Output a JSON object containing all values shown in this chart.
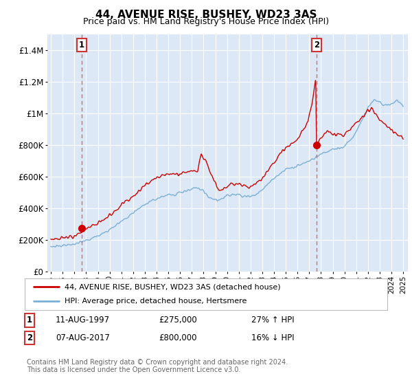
{
  "title": "44, AVENUE RISE, BUSHEY, WD23 3AS",
  "subtitle": "Price paid vs. HM Land Registry's House Price Index (HPI)",
  "legend_line1": "44, AVENUE RISE, BUSHEY, WD23 3AS (detached house)",
  "legend_line2": "HPI: Average price, detached house, Hertsmere",
  "transaction1_date": "11-AUG-1997",
  "transaction1_price": 275000,
  "transaction1_label": "27% ↑ HPI",
  "transaction1_year": 1997.62,
  "transaction2_date": "07-AUG-2017",
  "transaction2_price": 800000,
  "transaction2_label": "16% ↓ HPI",
  "transaction2_year": 2017.62,
  "footer1": "Contains HM Land Registry data © Crown copyright and database right 2024.",
  "footer2": "This data is licensed under the Open Government Licence v3.0.",
  "line_color_red": "#cc0000",
  "line_color_blue": "#7bafd4",
  "bg_color": "#dce8f5",
  "grid_color": "#ffffff",
  "ylim_max": 1500000,
  "xlim_start": 1994.7,
  "xlim_end": 2025.4,
  "hpi_points": [
    [
      1995.0,
      155000
    ],
    [
      1995.5,
      158000
    ],
    [
      1996.0,
      162000
    ],
    [
      1996.5,
      168000
    ],
    [
      1997.0,
      175000
    ],
    [
      1997.5,
      183000
    ],
    [
      1998.0,
      195000
    ],
    [
      1998.5,
      210000
    ],
    [
      1999.0,
      225000
    ],
    [
      1999.5,
      245000
    ],
    [
      2000.0,
      265000
    ],
    [
      2000.5,
      290000
    ],
    [
      2001.0,
      315000
    ],
    [
      2001.5,
      340000
    ],
    [
      2002.0,
      370000
    ],
    [
      2002.5,
      400000
    ],
    [
      2003.0,
      425000
    ],
    [
      2003.5,
      445000
    ],
    [
      2004.0,
      460000
    ],
    [
      2004.5,
      475000
    ],
    [
      2005.0,
      485000
    ],
    [
      2005.5,
      490000
    ],
    [
      2006.0,
      500000
    ],
    [
      2006.5,
      510000
    ],
    [
      2007.0,
      520000
    ],
    [
      2007.5,
      525000
    ],
    [
      2008.0,
      510000
    ],
    [
      2008.5,
      470000
    ],
    [
      2009.0,
      450000
    ],
    [
      2009.5,
      460000
    ],
    [
      2010.0,
      480000
    ],
    [
      2010.5,
      490000
    ],
    [
      2011.0,
      488000
    ],
    [
      2011.5,
      480000
    ],
    [
      2012.0,
      475000
    ],
    [
      2012.5,
      490000
    ],
    [
      2013.0,
      520000
    ],
    [
      2013.5,
      555000
    ],
    [
      2014.0,
      590000
    ],
    [
      2014.5,
      620000
    ],
    [
      2015.0,
      645000
    ],
    [
      2015.5,
      660000
    ],
    [
      2016.0,
      670000
    ],
    [
      2016.5,
      680000
    ],
    [
      2017.0,
      700000
    ],
    [
      2017.5,
      720000
    ],
    [
      2018.0,
      740000
    ],
    [
      2018.5,
      760000
    ],
    [
      2019.0,
      770000
    ],
    [
      2019.5,
      780000
    ],
    [
      2020.0,
      790000
    ],
    [
      2020.5,
      830000
    ],
    [
      2021.0,
      890000
    ],
    [
      2021.5,
      960000
    ],
    [
      2022.0,
      1040000
    ],
    [
      2022.5,
      1090000
    ],
    [
      2023.0,
      1070000
    ],
    [
      2023.5,
      1050000
    ],
    [
      2024.0,
      1060000
    ],
    [
      2024.5,
      1080000
    ],
    [
      2025.0,
      1050000
    ]
  ],
  "red_points": [
    [
      1995.0,
      205000
    ],
    [
      1995.5,
      207000
    ],
    [
      1996.0,
      210000
    ],
    [
      1996.5,
      218000
    ],
    [
      1997.0,
      228000
    ],
    [
      1997.5,
      242000
    ],
    [
      1998.0,
      265000
    ],
    [
      1998.5,
      285000
    ],
    [
      1999.0,
      308000
    ],
    [
      1999.5,
      330000
    ],
    [
      2000.0,
      355000
    ],
    [
      2000.5,
      385000
    ],
    [
      2001.0,
      415000
    ],
    [
      2001.5,
      445000
    ],
    [
      2002.0,
      475000
    ],
    [
      2002.5,
      510000
    ],
    [
      2003.0,
      545000
    ],
    [
      2003.5,
      575000
    ],
    [
      2004.0,
      595000
    ],
    [
      2004.5,
      610000
    ],
    [
      2005.0,
      615000
    ],
    [
      2005.5,
      618000
    ],
    [
      2006.0,
      620000
    ],
    [
      2006.5,
      625000
    ],
    [
      2007.0,
      635000
    ],
    [
      2007.5,
      640000
    ],
    [
      2007.8,
      745000
    ],
    [
      2008.0,
      720000
    ],
    [
      2008.3,
      680000
    ],
    [
      2008.7,
      610000
    ],
    [
      2009.0,
      560000
    ],
    [
      2009.3,
      520000
    ],
    [
      2009.5,
      510000
    ],
    [
      2009.7,
      525000
    ],
    [
      2010.0,
      540000
    ],
    [
      2010.3,
      555000
    ],
    [
      2010.7,
      560000
    ],
    [
      2011.0,
      555000
    ],
    [
      2011.5,
      545000
    ],
    [
      2012.0,
      535000
    ],
    [
      2012.5,
      555000
    ],
    [
      2013.0,
      590000
    ],
    [
      2013.5,
      640000
    ],
    [
      2014.0,
      690000
    ],
    [
      2014.5,
      740000
    ],
    [
      2015.0,
      780000
    ],
    [
      2015.5,
      810000
    ],
    [
      2016.0,
      840000
    ],
    [
      2016.3,
      870000
    ],
    [
      2016.6,
      910000
    ],
    [
      2016.9,
      960000
    ],
    [
      2017.0,
      1000000
    ],
    [
      2017.2,
      1050000
    ],
    [
      2017.4,
      1150000
    ],
    [
      2017.5,
      1200000
    ],
    [
      2017.55,
      1220000
    ],
    [
      2017.62,
      800000
    ],
    [
      2017.8,
      820000
    ],
    [
      2018.0,
      840000
    ],
    [
      2018.3,
      870000
    ],
    [
      2018.6,
      880000
    ],
    [
      2019.0,
      870000
    ],
    [
      2019.5,
      865000
    ],
    [
      2020.0,
      870000
    ],
    [
      2020.5,
      900000
    ],
    [
      2021.0,
      940000
    ],
    [
      2021.5,
      980000
    ],
    [
      2022.0,
      1020000
    ],
    [
      2022.3,
      1040000
    ],
    [
      2022.5,
      1010000
    ],
    [
      2022.8,
      980000
    ],
    [
      2023.0,
      960000
    ],
    [
      2023.3,
      940000
    ],
    [
      2023.6,
      920000
    ],
    [
      2024.0,
      900000
    ],
    [
      2024.5,
      870000
    ],
    [
      2025.0,
      850000
    ]
  ]
}
